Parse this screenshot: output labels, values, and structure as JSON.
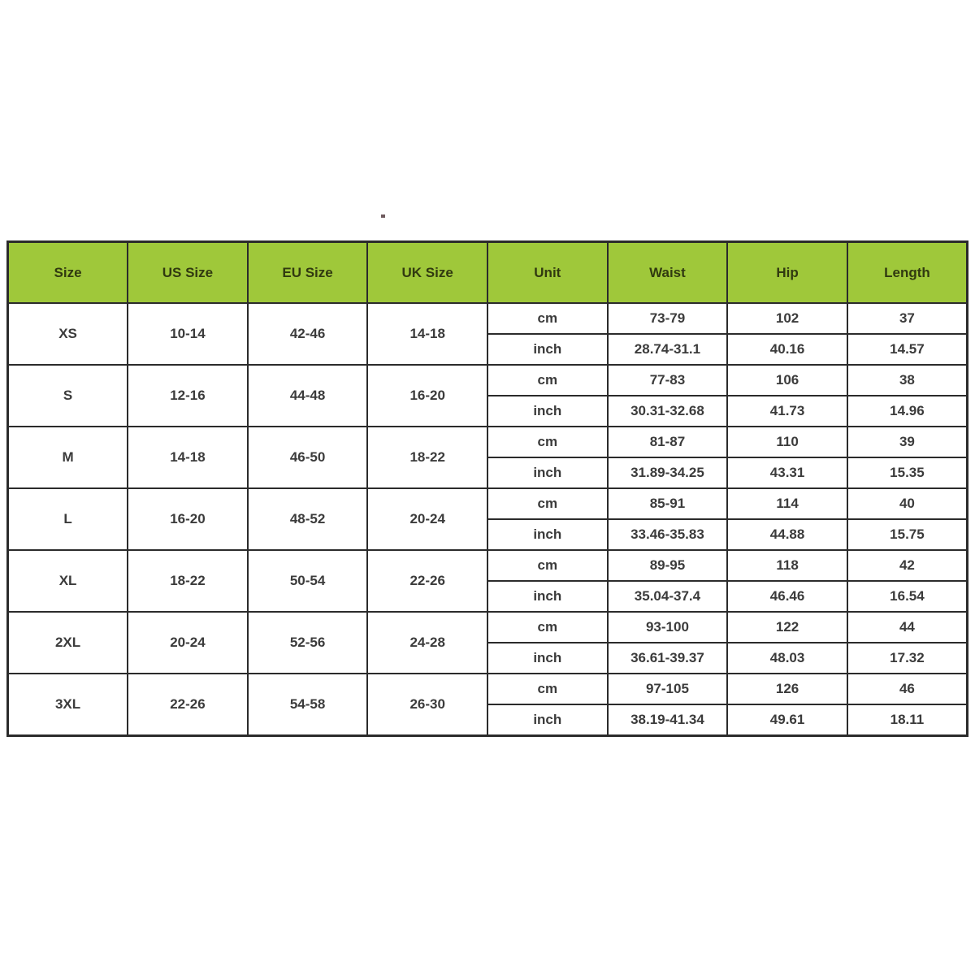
{
  "page": {
    "background": "#ffffff",
    "header_bg": "#9fc83a",
    "header_text_color": "#313a10",
    "body_text_color": "#3b3b3b",
    "border_color": "#2b2b2b"
  },
  "table": {
    "columns": [
      "Size",
      "US Size",
      "EU Size",
      "UK Size",
      "Unit",
      "Waist",
      "Hip",
      "Length"
    ],
    "units": [
      "cm",
      "inch"
    ],
    "rows": [
      {
        "size": "XS",
        "us": "10-14",
        "eu": "42-46",
        "uk": "14-18",
        "cm": {
          "waist": "73-79",
          "hip": "102",
          "length": "37"
        },
        "inch": {
          "waist": "28.74-31.1",
          "hip": "40.16",
          "length": "14.57"
        }
      },
      {
        "size": "S",
        "us": "12-16",
        "eu": "44-48",
        "uk": "16-20",
        "cm": {
          "waist": "77-83",
          "hip": "106",
          "length": "38"
        },
        "inch": {
          "waist": "30.31-32.68",
          "hip": "41.73",
          "length": "14.96"
        }
      },
      {
        "size": "M",
        "us": "14-18",
        "eu": "46-50",
        "uk": "18-22",
        "cm": {
          "waist": "81-87",
          "hip": "110",
          "length": "39"
        },
        "inch": {
          "waist": "31.89-34.25",
          "hip": "43.31",
          "length": "15.35"
        }
      },
      {
        "size": "L",
        "us": "16-20",
        "eu": "48-52",
        "uk": "20-24",
        "cm": {
          "waist": "85-91",
          "hip": "114",
          "length": "40"
        },
        "inch": {
          "waist": "33.46-35.83",
          "hip": "44.88",
          "length": "15.75"
        }
      },
      {
        "size": "XL",
        "us": "18-22",
        "eu": "50-54",
        "uk": "22-26",
        "cm": {
          "waist": "89-95",
          "hip": "118",
          "length": "42"
        },
        "inch": {
          "waist": "35.04-37.4",
          "hip": "46.46",
          "length": "16.54"
        }
      },
      {
        "size": "2XL",
        "us": "20-24",
        "eu": "52-56",
        "uk": "24-28",
        "cm": {
          "waist": "93-100",
          "hip": "122",
          "length": "44"
        },
        "inch": {
          "waist": "36.61-39.37",
          "hip": "48.03",
          "length": "17.32"
        }
      },
      {
        "size": "3XL",
        "us": "22-26",
        "eu": "54-58",
        "uk": "26-30",
        "cm": {
          "waist": "97-105",
          "hip": "126",
          "length": "46"
        },
        "inch": {
          "waist": "38.19-41.34",
          "hip": "49.61",
          "length": "18.11"
        }
      }
    ]
  }
}
